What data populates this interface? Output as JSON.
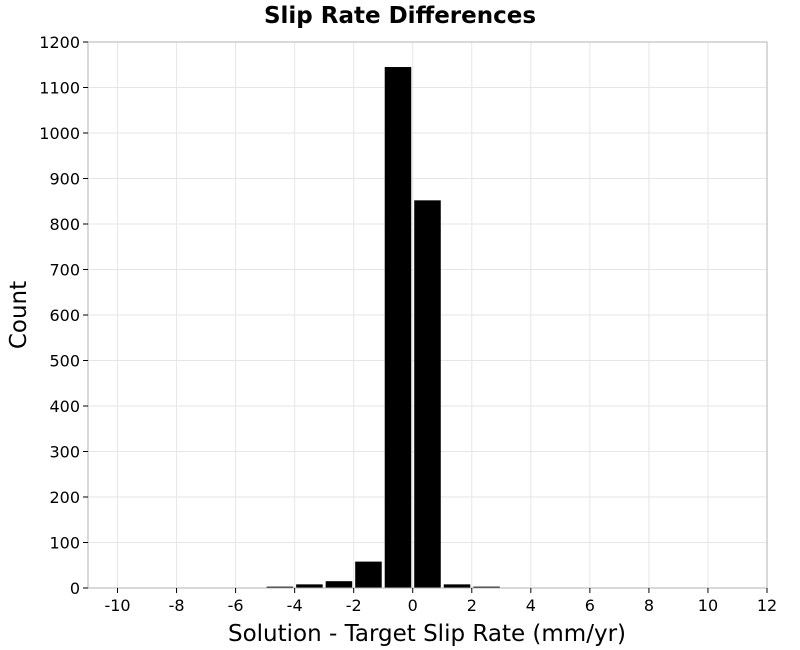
{
  "chart_data": {
    "type": "bar",
    "title": "Slip Rate Differences",
    "xlabel": "Solution - Target Slip Rate (mm/yr)",
    "ylabel": "Count",
    "xlim": [
      -11,
      12
    ],
    "ylim": [
      0,
      1200
    ],
    "x_ticks": [
      -10,
      -8,
      -6,
      -4,
      -2,
      0,
      2,
      4,
      6,
      8,
      10,
      12
    ],
    "y_ticks": [
      0,
      100,
      200,
      300,
      400,
      500,
      600,
      700,
      800,
      900,
      1000,
      1100,
      1200
    ],
    "bin_width": 1,
    "grid": true,
    "bar_color": "#000000",
    "bins": [
      {
        "x": -4.5,
        "count": 3
      },
      {
        "x": -3.5,
        "count": 8
      },
      {
        "x": -2.5,
        "count": 15
      },
      {
        "x": -1.5,
        "count": 58
      },
      {
        "x": -0.5,
        "count": 1145
      },
      {
        "x": 0.5,
        "count": 852
      },
      {
        "x": 1.5,
        "count": 8
      },
      {
        "x": 2.5,
        "count": 3
      }
    ]
  }
}
